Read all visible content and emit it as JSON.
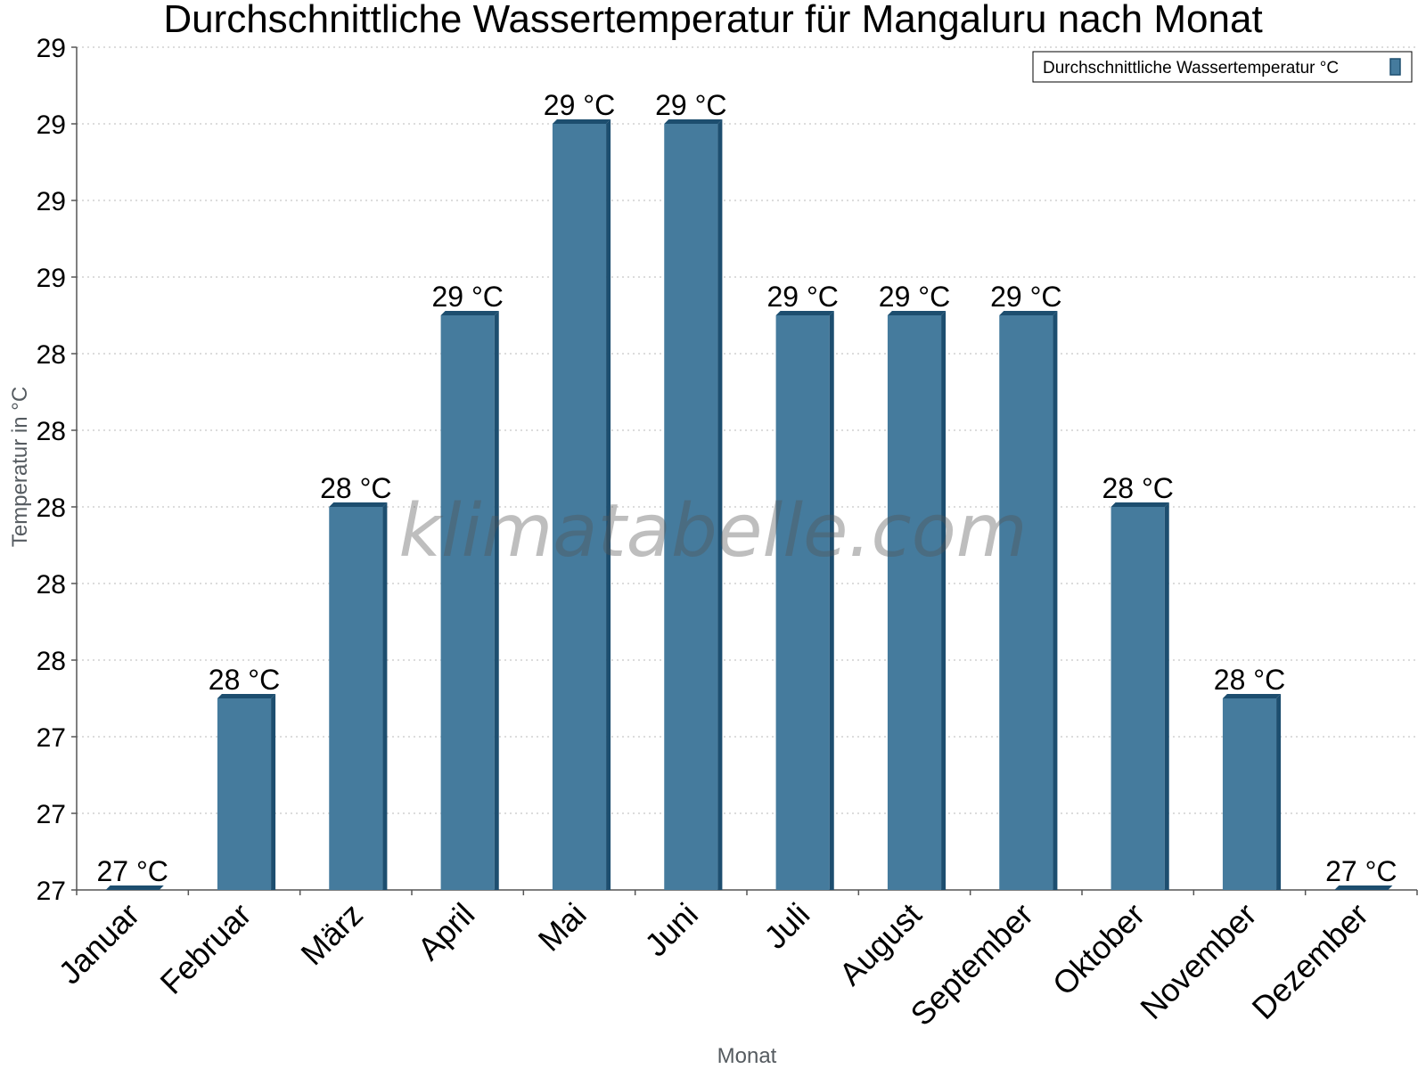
{
  "chart_data": {
    "type": "bar",
    "title": "Durchschnittliche Wassertemperatur für Mangaluru nach Monat",
    "xlabel": "Monat",
    "ylabel": "Temperatur in °C",
    "categories": [
      "Januar",
      "Februar",
      "März",
      "April",
      "Mai",
      "Juni",
      "Juli",
      "August",
      "September",
      "Oktober",
      "November",
      "Dezember"
    ],
    "series": [
      {
        "name": "Durchschnittliche Wassertemperatur °C",
        "values": [
          27.0,
          27.5,
          28.0,
          28.5,
          29.0,
          29.0,
          28.5,
          28.5,
          28.5,
          28.0,
          27.5,
          27.0
        ],
        "labels": [
          "27 °C",
          "28 °C",
          "28 °C",
          "29 °C",
          "29 °C",
          "29 °C",
          "29 °C",
          "29 °C",
          "29 °C",
          "28 °C",
          "28 °C",
          "27 °C"
        ],
        "color": "#457b9d",
        "edge_color": "#1d4e6f"
      }
    ],
    "ylim": [
      27.0,
      29.2
    ],
    "yticks": [
      27.0,
      27.2,
      27.4,
      27.6,
      27.8,
      28.0,
      28.2,
      28.4,
      28.6,
      28.8,
      29.0,
      29.2
    ],
    "ytick_labels": [
      "27",
      "27",
      "27",
      "28",
      "28",
      "28",
      "28",
      "28",
      "29",
      "29",
      "29",
      "29"
    ],
    "grid": true,
    "legend_position": "top-right",
    "watermark": "klimatabelle.com"
  }
}
